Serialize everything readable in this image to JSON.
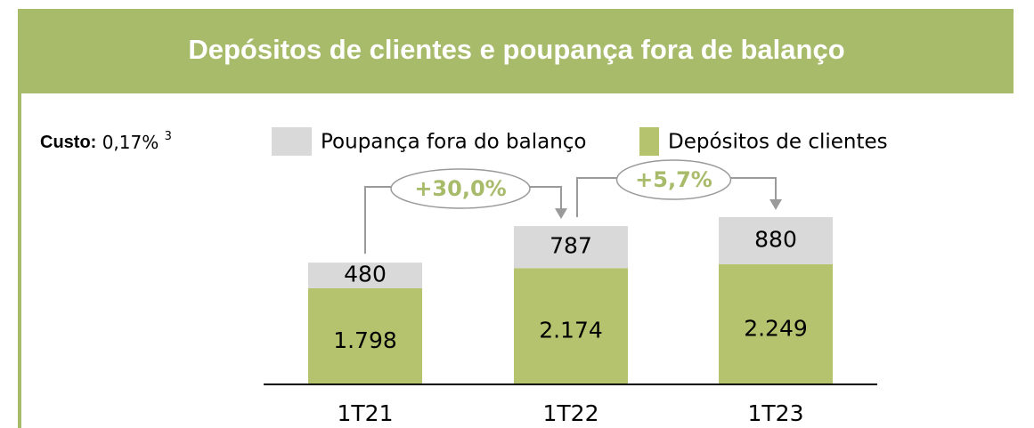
{
  "chart_data": {
    "type": "stacked_bar",
    "title": "Depósitos de clientes e poupança fora de balanço",
    "cost_label": "Custo:",
    "cost_value": "0,17%",
    "cost_note": "3",
    "categories": [
      "1T21",
      "1T22",
      "1T23"
    ],
    "series": [
      {
        "name": "Poupança fora do balanço",
        "color": "#d9d9d9",
        "values": [
          480,
          787,
          880
        ]
      },
      {
        "name": "Depósitos de clientes",
        "color": "#b5c26e",
        "values": [
          1798,
          2174,
          2249
        ],
        "value_labels": [
          "1.798",
          "2.174",
          "2.249"
        ]
      }
    ],
    "annotations": [
      "+30,0%",
      "+5,7%"
    ]
  }
}
